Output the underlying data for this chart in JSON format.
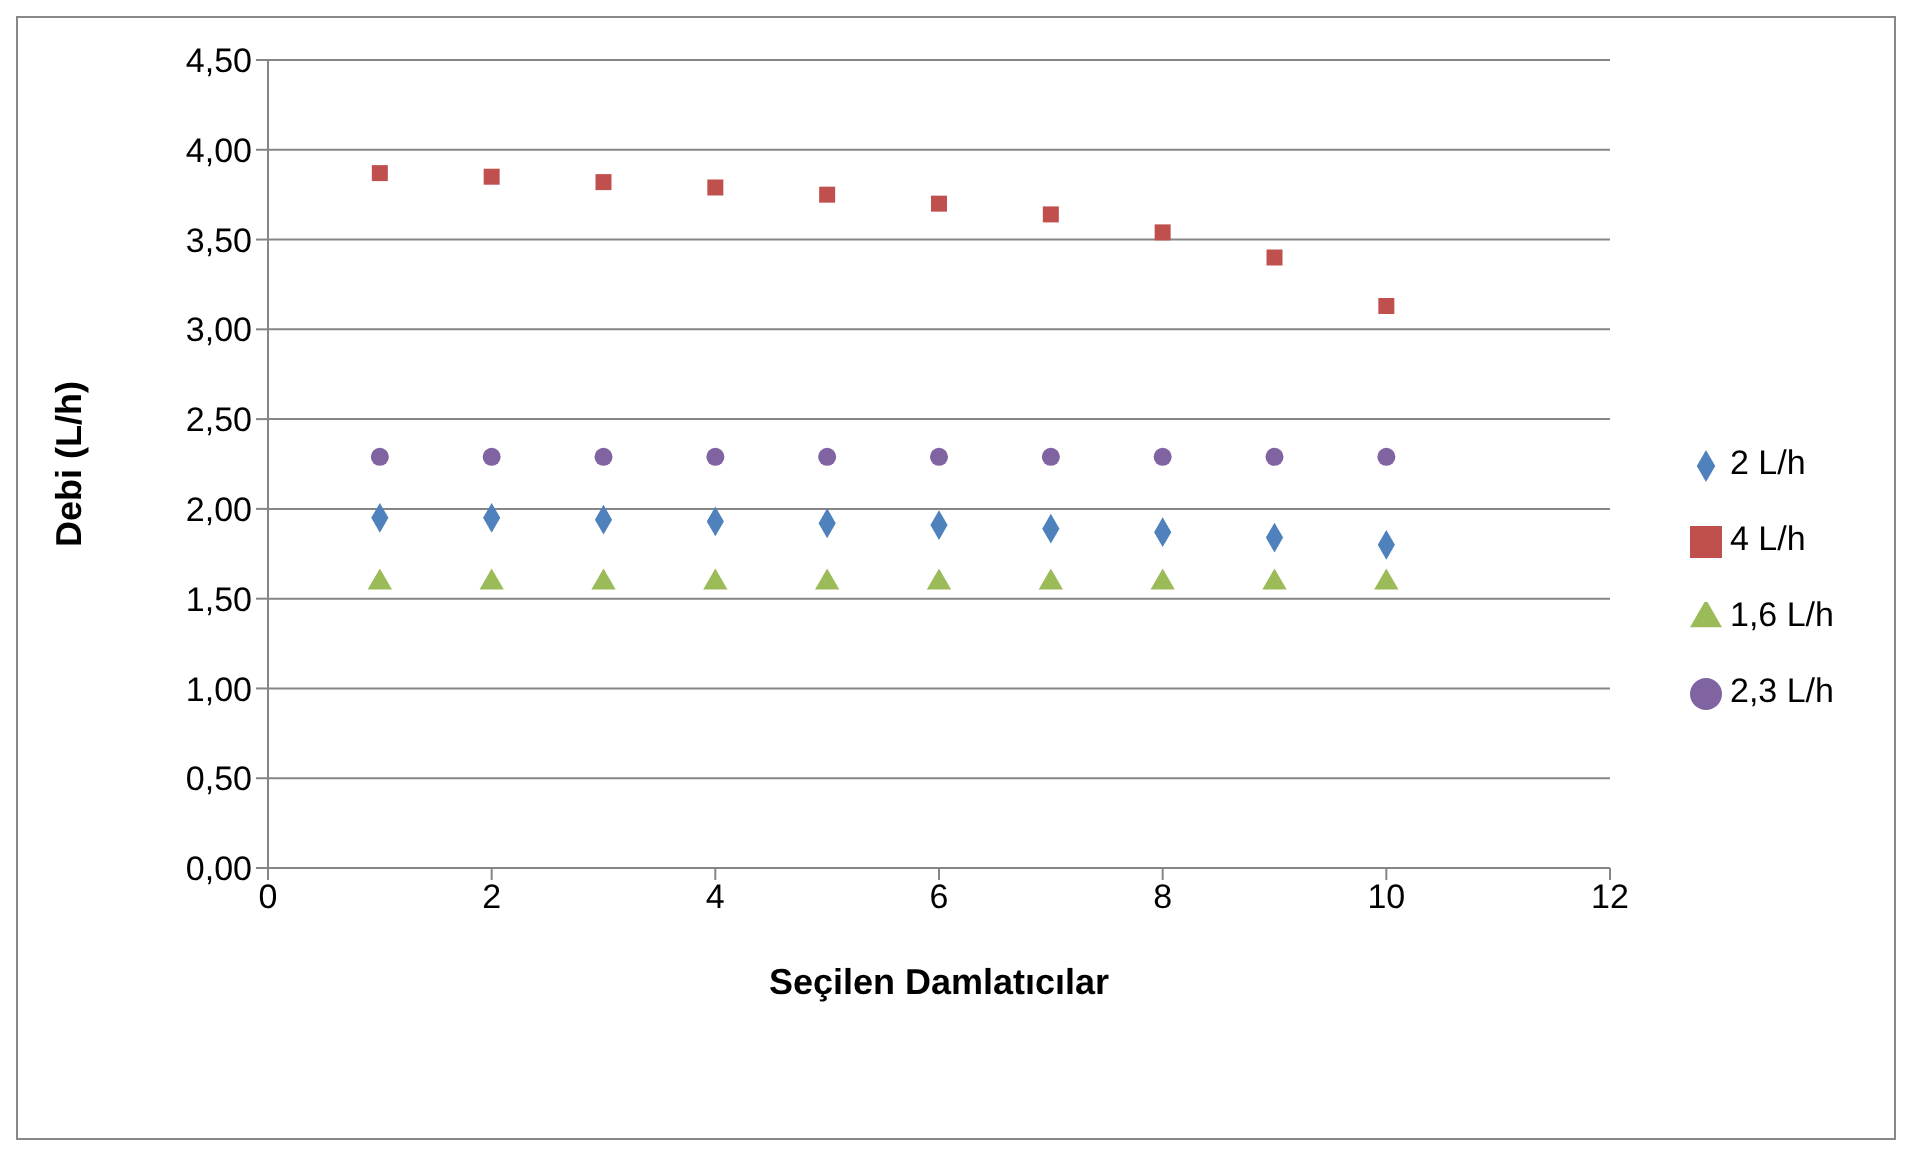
{
  "chart_data": {
    "type": "scatter",
    "xlabel": "Seçilen Damlatıcılar",
    "ylabel": "Debi (L/h)",
    "xlim": [
      0,
      12
    ],
    "xticks": [
      0,
      2,
      4,
      6,
      8,
      10,
      12
    ],
    "ylim": [
      0,
      4.5
    ],
    "yticks": [
      {
        "value": 0,
        "label": "0,00"
      },
      {
        "value": 0.5,
        "label": "0,50"
      },
      {
        "value": 1,
        "label": "1,00"
      },
      {
        "value": 1.5,
        "label": "1,50"
      },
      {
        "value": 2,
        "label": "2,00"
      },
      {
        "value": 2.5,
        "label": "2,50"
      },
      {
        "value": 3,
        "label": "3,00"
      },
      {
        "value": 3.5,
        "label": "3,50"
      },
      {
        "value": 4,
        "label": "4,00"
      },
      {
        "value": 4.5,
        "label": "4,50"
      }
    ],
    "grid": "y",
    "legend": "right",
    "x": [
      1,
      2,
      3,
      4,
      5,
      6,
      7,
      8,
      9,
      10
    ],
    "series": [
      {
        "name": "2 L/h",
        "color": "#4f81bd",
        "marker": "diamond",
        "values": [
          1.95,
          1.95,
          1.94,
          1.93,
          1.92,
          1.91,
          1.89,
          1.87,
          1.84,
          1.8
        ]
      },
      {
        "name": "4 L/h",
        "color": "#c0504d",
        "marker": "square",
        "values": [
          3.87,
          3.85,
          3.82,
          3.79,
          3.75,
          3.7,
          3.64,
          3.54,
          3.4,
          3.13
        ]
      },
      {
        "name": "1,6 L/h",
        "color": "#9bbb59",
        "marker": "triangle",
        "values": [
          1.59,
          1.59,
          1.59,
          1.59,
          1.59,
          1.59,
          1.59,
          1.59,
          1.59,
          1.59
        ]
      },
      {
        "name": "2,3 L/h",
        "color": "#8064a2",
        "marker": "circle",
        "values": [
          2.29,
          2.29,
          2.29,
          2.29,
          2.29,
          2.29,
          2.29,
          2.29,
          2.29,
          2.29
        ]
      }
    ]
  }
}
